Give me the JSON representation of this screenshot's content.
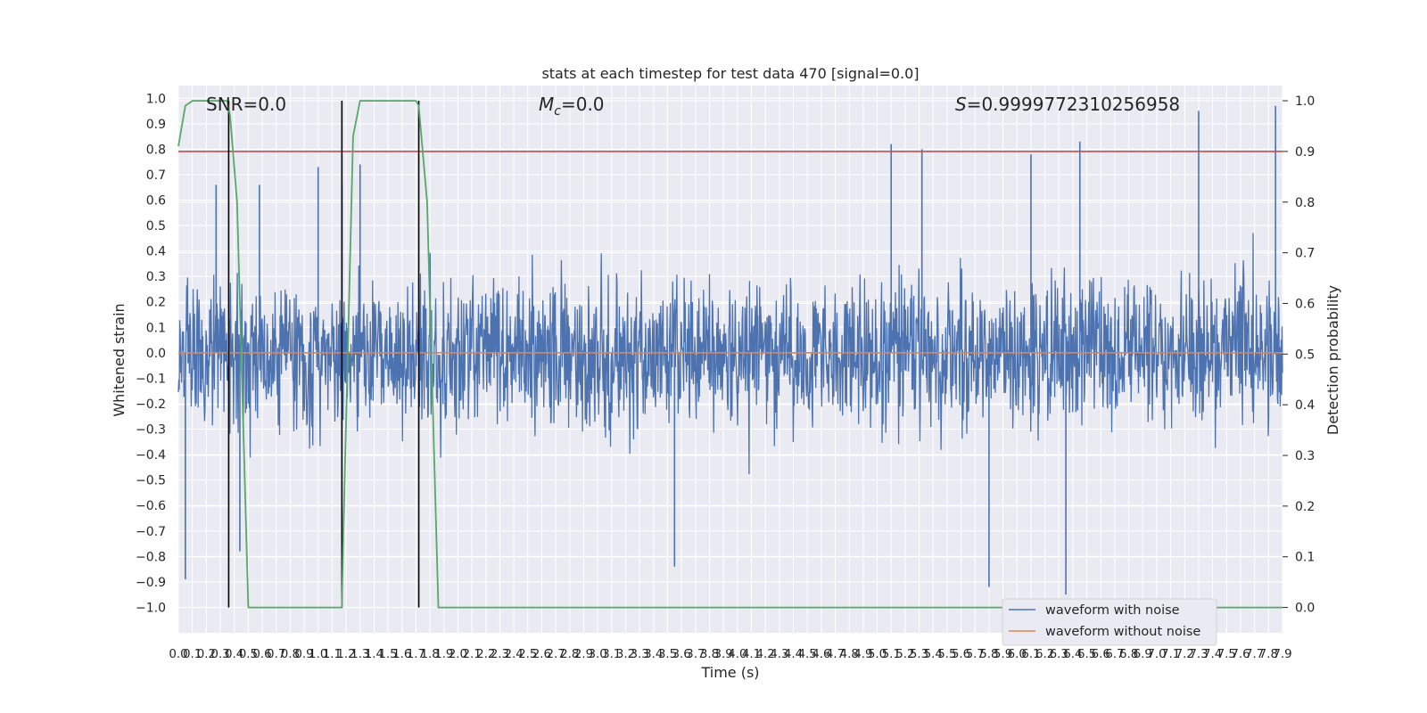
{
  "chart_data": {
    "type": "line",
    "title": "stats at each timestep for test data 470 [signal=0.0]",
    "xlabel": "Time (s)",
    "ylabel": "Whitened strain",
    "ylabel_right": "Detection probability",
    "xlim": [
      0.0,
      7.9
    ],
    "ylim": [
      -1.1,
      1.05
    ],
    "ylim_right": [
      -0.05,
      1.03
    ],
    "grid": true,
    "x_ticks": [
      "0.0",
      "0.1",
      "0.2",
      "0.3",
      "0.4",
      "0.5",
      "0.6",
      "0.7",
      "0.8",
      "0.9",
      "1.0",
      "1.1",
      "1.2",
      "1.3",
      "1.4",
      "1.5",
      "1.6",
      "1.7",
      "1.8",
      "1.9",
      "2.0",
      "2.1",
      "2.2",
      "2.3",
      "2.4",
      "2.5",
      "2.6",
      "2.7",
      "2.8",
      "2.9",
      "3.0",
      "3.1",
      "3.2",
      "3.3",
      "3.4",
      "3.5",
      "3.6",
      "3.7",
      "3.8",
      "3.9",
      "4.0",
      "4.1",
      "4.2",
      "4.3",
      "4.4",
      "4.5",
      "4.6",
      "4.7",
      "4.8",
      "4.9",
      "5.0",
      "5.1",
      "5.2",
      "5.3",
      "5.4",
      "5.5",
      "5.6",
      "5.7",
      "5.8",
      "5.9",
      "6.0",
      "6.1",
      "6.2",
      "6.3",
      "6.4",
      "6.5",
      "6.6",
      "6.7",
      "6.8",
      "6.9",
      "7.0",
      "7.1",
      "7.2",
      "7.3",
      "7.4",
      "7.5",
      "7.6",
      "7.7",
      "7.8",
      "7.9"
    ],
    "y_ticks": [
      "1.0",
      "0.9",
      "0.8",
      "0.7",
      "0.6",
      "0.5",
      "0.4",
      "0.3",
      "0.2",
      "0.1",
      "0.0",
      "−0.1",
      "−0.2",
      "−0.3",
      "−0.4",
      "−0.5",
      "−0.6",
      "−0.7",
      "−0.8",
      "−0.9",
      "−1.0"
    ],
    "y_ticks_right": [
      "1.0",
      "0.9",
      "0.8",
      "0.7",
      "0.6",
      "0.5",
      "0.4",
      "0.3",
      "0.2",
      "0.1",
      "0.0"
    ],
    "annotations": {
      "snr": "SNR=0.0",
      "mc_symbol": "M",
      "mc_subscript": "c",
      "mc_value": "=0.0",
      "s_symbol": "S",
      "s_value": "=0.9999772310256958"
    },
    "legend": {
      "placement": "lower-right",
      "entries": [
        {
          "label": "waveform with noise",
          "color": "#4c72b0"
        },
        {
          "label": "waveform without noise",
          "color": "#dd8452"
        }
      ]
    },
    "series": [
      {
        "name": "waveform with noise",
        "axis": "left",
        "color": "#4c72b0",
        "description_values": {
          "x_start": 0.0,
          "x_end": 7.9,
          "typical_amplitude": 0.4,
          "spikes": [
            {
              "x": 0.05,
              "y": -0.89
            },
            {
              "x": 0.27,
              "y": 0.66
            },
            {
              "x": 0.44,
              "y": -0.78
            },
            {
              "x": 0.58,
              "y": 0.66
            },
            {
              "x": 1.0,
              "y": 0.73
            },
            {
              "x": 1.17,
              "y": 0.66
            },
            {
              "x": 1.3,
              "y": 0.74
            },
            {
              "x": 3.55,
              "y": -0.84
            },
            {
              "x": 5.1,
              "y": 0.82
            },
            {
              "x": 5.32,
              "y": 0.8
            },
            {
              "x": 5.8,
              "y": -0.92
            },
            {
              "x": 6.1,
              "y": 0.78
            },
            {
              "x": 6.35,
              "y": -0.95
            },
            {
              "x": 6.45,
              "y": 0.83
            },
            {
              "x": 7.3,
              "y": 0.95
            },
            {
              "x": 7.85,
              "y": 0.97
            }
          ]
        }
      },
      {
        "name": "waveform without noise",
        "axis": "left",
        "color": "#dd8452",
        "x": [
          0.0,
          7.9
        ],
        "y": [
          0.0,
          0.0
        ]
      },
      {
        "name": "detection probability",
        "axis": "right",
        "color": "#55a868",
        "x": [
          0.0,
          0.05,
          0.1,
          0.2,
          0.35,
          0.37,
          0.42,
          0.5,
          1.0,
          1.17,
          1.18,
          1.25,
          1.3,
          1.5,
          1.7,
          1.72,
          1.78,
          1.86,
          1.92,
          5.8,
          6.5,
          7.9
        ],
        "y": [
          0.91,
          0.99,
          1.0,
          1.0,
          1.0,
          0.97,
          0.8,
          0.0,
          0.0,
          0.0,
          0.14,
          0.93,
          1.0,
          1.0,
          1.0,
          0.99,
          0.8,
          0.0,
          0.0,
          0.0,
          0.0,
          0.0
        ]
      },
      {
        "name": "threshold",
        "axis": "right",
        "color": "#c44e52",
        "x": [
          0.0,
          7.9
        ],
        "y": [
          0.9,
          0.9
        ]
      }
    ],
    "vertical_lines": {
      "axis": "right",
      "color": "#000000",
      "y_range": [
        0.0,
        1.0
      ],
      "x": [
        0.36,
        1.17,
        1.72
      ]
    }
  }
}
